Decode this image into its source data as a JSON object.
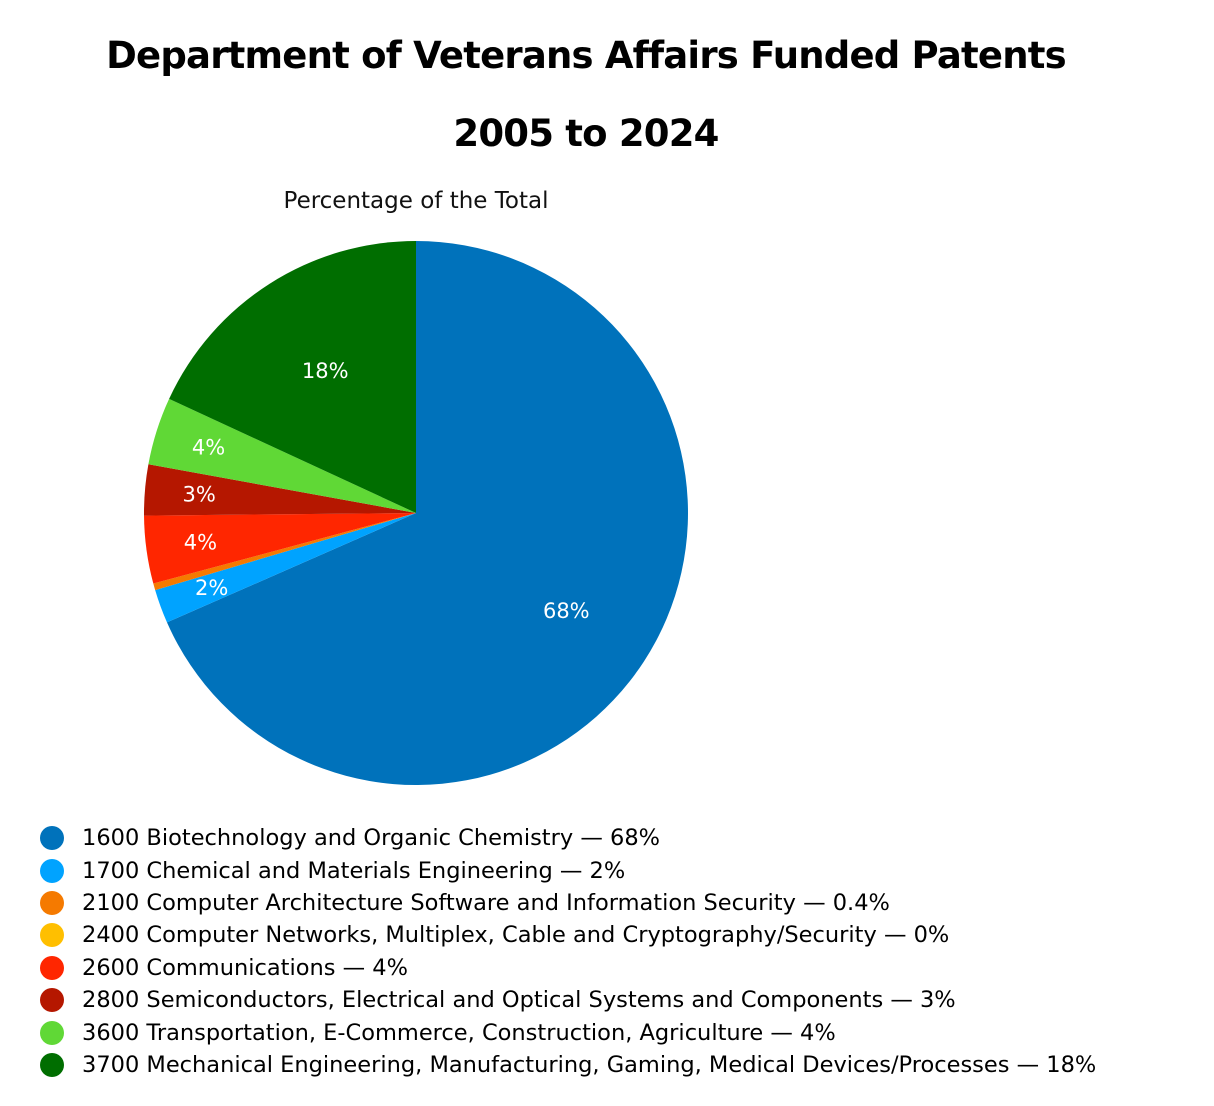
{
  "chart_data": {
    "type": "pie",
    "title": "Department of Veterans Affairs Funded Patents",
    "subtitle": "2005 to 2024",
    "series_title": "Percentage of the Total",
    "legend_position": "bottom",
    "slices": [
      {
        "code": "1600",
        "name": "Biotechnology and Organic Chemistry",
        "value": 68,
        "display": "68%",
        "color": "#0072BB",
        "show_label": true
      },
      {
        "code": "1700",
        "name": "Chemical and Materials Engineering",
        "value": 2,
        "display": "2%",
        "color": "#00A3FF",
        "show_label": true
      },
      {
        "code": "2100",
        "name": "Computer Architecture Software and Information Security",
        "value": 0.4,
        "display": "0.4%",
        "color": "#F57A00",
        "show_label": false
      },
      {
        "code": "2400",
        "name": "Computer Networks, Multiplex, Cable and Cryptography/Security",
        "value": 0,
        "display": "0%",
        "color": "#FFBF00",
        "show_label": false
      },
      {
        "code": "2600",
        "name": "Communications",
        "value": 4,
        "display": "4%",
        "color": "#FF2600",
        "show_label": true
      },
      {
        "code": "2800",
        "name": "Semiconductors, Electrical and Optical Systems and Components",
        "value": 3,
        "display": "3%",
        "color": "#B51700",
        "show_label": true
      },
      {
        "code": "3600",
        "name": "Transportation, E-Commerce, Construction, Agriculture",
        "value": 4,
        "display": "4%",
        "color": "#60D836",
        "show_label": true
      },
      {
        "code": "3700",
        "name": "Mechanical Engineering, Manufacturing, Gaming, Medical Devices/Processes",
        "value": 18,
        "display": "18%",
        "color": "#006E00",
        "show_label": true
      }
    ]
  }
}
